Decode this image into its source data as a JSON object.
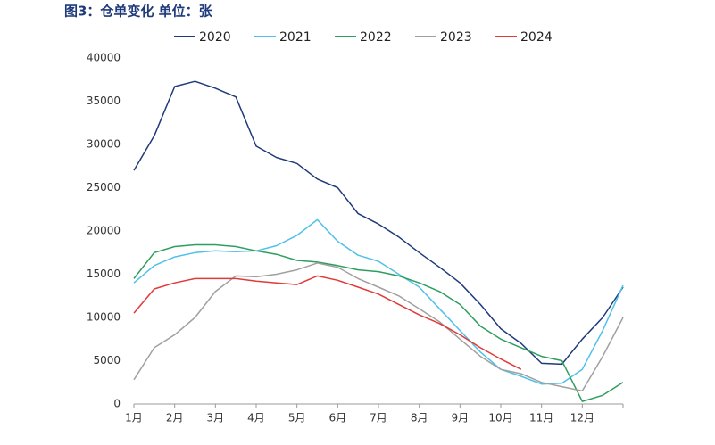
{
  "chart_data": {
    "type": "line",
    "title": "图3：仓单变化  单位：张",
    "categories": [
      "1月",
      null,
      "2月",
      null,
      "3月",
      null,
      "4月",
      null,
      "5月",
      null,
      "6月",
      null,
      "7月",
      null,
      "8月",
      null,
      "9月",
      null,
      "10月",
      null,
      "11月",
      null,
      "12月",
      null,
      null
    ],
    "ylim": [
      0,
      40000
    ],
    "yticks": [
      0,
      5000,
      10000,
      15000,
      20000,
      25000,
      30000,
      35000,
      40000
    ],
    "grid": false,
    "series": [
      {
        "name": "2020",
        "color": "#1f3a7a",
        "values": [
          27000,
          31000,
          36700,
          37300,
          36500,
          35500,
          29800,
          28500,
          27800,
          26000,
          25000,
          22000,
          20800,
          19300,
          17500,
          15800,
          14000,
          11500,
          8700,
          7000,
          4700,
          4600,
          7500,
          10000,
          13500
        ]
      },
      {
        "name": "2021",
        "color": "#4fc1e9",
        "values": [
          14000,
          16000,
          17000,
          17500,
          17700,
          17600,
          17700,
          18300,
          19500,
          21300,
          18800,
          17200,
          16500,
          15000,
          13500,
          11000,
          8500,
          6000,
          4000,
          3200,
          2300,
          2400,
          4000,
          8500,
          13700
        ]
      },
      {
        "name": "2022",
        "color": "#2e9e5e",
        "values": [
          14500,
          17500,
          18200,
          18400,
          18400,
          18200,
          17700,
          17300,
          16600,
          16400,
          16000,
          15500,
          15300,
          14800,
          14000,
          13000,
          11500,
          9000,
          7500,
          6500,
          5500,
          5000,
          300,
          1000,
          2500
        ]
      },
      {
        "name": "2023",
        "color": "#a0a0a0",
        "values": [
          2800,
          6500,
          8000,
          10000,
          13000,
          14800,
          14700,
          15000,
          15500,
          16300,
          15800,
          14500,
          13500,
          12500,
          11000,
          9500,
          7500,
          5500,
          4000,
          3500,
          2500,
          2000,
          1500,
          5500,
          10000
        ]
      },
      {
        "name": "2024",
        "color": "#e03a3a",
        "values": [
          10500,
          13300,
          14000,
          14500,
          14500,
          14500,
          14200,
          14000,
          13800,
          14800,
          14300,
          13500,
          12700,
          11500,
          10300,
          9300,
          8000,
          6500,
          5200,
          4000,
          null,
          null,
          null,
          null,
          null
        ]
      }
    ]
  }
}
